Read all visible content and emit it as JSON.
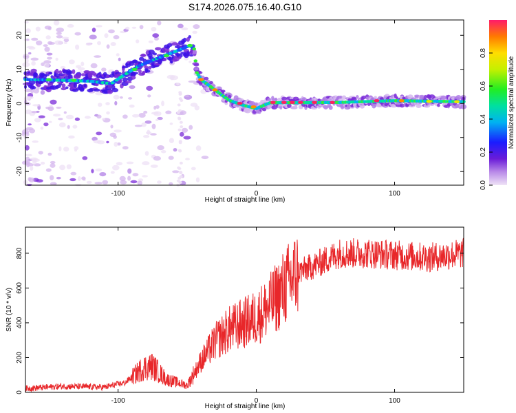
{
  "title": "S174.2026.075.16.40.G10",
  "chart_data": [
    {
      "type": "heatmap",
      "xlabel": "Height of straight line (km)",
      "ylabel": "Frequency (Hz)",
      "xlim": [
        -167,
        150
      ],
      "ylim": [
        -24,
        24.5
      ],
      "xticks": [
        -100,
        0,
        100
      ],
      "yticks": [
        -20,
        -10,
        0,
        10,
        20
      ],
      "colorbar": {
        "label": "Normalized spectral amplitude",
        "range": [
          0,
          1
        ],
        "ticks": [
          0.0,
          0.2,
          0.4,
          0.6,
          0.8
        ]
      },
      "ridge": [
        {
          "x": -167,
          "y": 7
        },
        {
          "x": -140,
          "y": 6.8
        },
        {
          "x": -120,
          "y": 6.5
        },
        {
          "x": -105,
          "y": 5.8
        },
        {
          "x": -95,
          "y": 8.5
        },
        {
          "x": -85,
          "y": 11
        },
        {
          "x": -70,
          "y": 13.5
        },
        {
          "x": -60,
          "y": 15
        },
        {
          "x": -48,
          "y": 17
        },
        {
          "x": -45,
          "y": 16
        },
        {
          "x": -43,
          "y": 9
        },
        {
          "x": -40,
          "y": 7
        },
        {
          "x": -30,
          "y": 4
        },
        {
          "x": -20,
          "y": 1
        },
        {
          "x": -10,
          "y": -0.5
        },
        {
          "x": 0,
          "y": -1.5
        },
        {
          "x": 10,
          "y": 0.2
        },
        {
          "x": 30,
          "y": 0.2
        },
        {
          "x": 60,
          "y": 0.3
        },
        {
          "x": 100,
          "y": 0.8
        },
        {
          "x": 150,
          "y": 0.5
        }
      ]
    },
    {
      "type": "line",
      "xlabel": "Height of straight line (km)",
      "ylabel": "SNR (10 * v/v)",
      "xlim": [
        -167,
        150
      ],
      "ylim": [
        0,
        950
      ],
      "xticks": [
        -100,
        0,
        100
      ],
      "yticks": [
        0,
        200,
        400,
        600,
        800
      ],
      "color": "#e8272a",
      "trend": [
        {
          "x": -167,
          "y": 22
        },
        {
          "x": -140,
          "y": 35
        },
        {
          "x": -110,
          "y": 30
        },
        {
          "x": -95,
          "y": 55
        },
        {
          "x": -82,
          "y": 140
        },
        {
          "x": -75,
          "y": 150
        },
        {
          "x": -65,
          "y": 75
        },
        {
          "x": -50,
          "y": 40
        },
        {
          "x": -40,
          "y": 180
        },
        {
          "x": -30,
          "y": 290
        },
        {
          "x": -20,
          "y": 360
        },
        {
          "x": 0,
          "y": 430
        },
        {
          "x": 10,
          "y": 500
        },
        {
          "x": 20,
          "y": 600
        },
        {
          "x": 30,
          "y": 690
        },
        {
          "x": 45,
          "y": 740
        },
        {
          "x": 60,
          "y": 800
        },
        {
          "x": 80,
          "y": 800
        },
        {
          "x": 100,
          "y": 790
        },
        {
          "x": 125,
          "y": 775
        },
        {
          "x": 150,
          "y": 800
        }
      ]
    }
  ]
}
